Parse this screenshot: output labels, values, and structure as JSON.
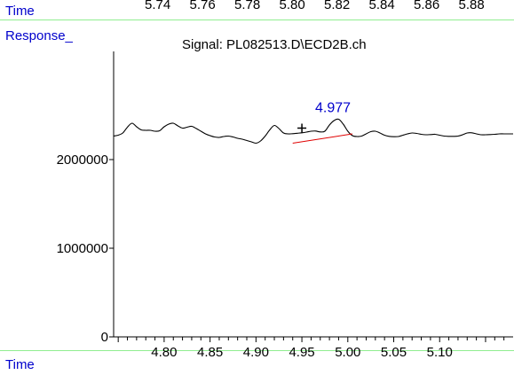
{
  "colors": {
    "label": "#0000cc",
    "rule": "#90ee90",
    "trace": "#000000",
    "baseline": "#e00000",
    "axis": "#000000"
  },
  "header": {
    "time_label": "Time",
    "top_ticks": [
      "5.74",
      "5.76",
      "5.78",
      "5.80",
      "5.82",
      "5.84",
      "5.86",
      "5.88"
    ],
    "response_label": "Response_"
  },
  "chart_data": {
    "type": "line",
    "title": "Signal: PL082513.D\\ECD2B.ch",
    "xlabel": "Time",
    "ylabel": "Response_",
    "xlim": [
      4.745,
      5.18
    ],
    "ylim": [
      0,
      2500000
    ],
    "x_ticks": [
      "4.80",
      "4.85",
      "4.90",
      "4.95",
      "5.00",
      "5.05",
      "5.10"
    ],
    "x_tick_values": [
      4.8,
      4.85,
      4.9,
      4.95,
      5.0,
      5.05,
      5.1
    ],
    "y_ticks": [
      "2000000",
      "1000000",
      "0"
    ],
    "y_tick_values": [
      2000000,
      1000000,
      0
    ],
    "peak": {
      "label": "4.977",
      "x": 4.977,
      "y": 2395000
    },
    "baseline_segment": {
      "x": [
        4.94,
        5.005
      ],
      "y": [
        2185000,
        2290000
      ]
    },
    "series": [
      {
        "x": [
          4.745,
          4.75,
          4.755,
          4.76,
          4.765,
          4.77,
          4.775,
          4.78,
          4.785,
          4.79,
          4.795,
          4.8,
          4.805,
          4.81,
          4.815,
          4.82,
          4.825,
          4.83,
          4.835,
          4.84,
          4.845,
          4.85,
          4.855,
          4.86,
          4.865,
          4.87,
          4.875,
          4.88,
          4.885,
          4.89,
          4.895,
          4.9,
          4.905,
          4.91,
          4.915,
          4.92,
          4.925,
          4.93,
          4.935,
          4.94,
          4.945,
          4.95,
          4.955,
          4.96,
          4.965,
          4.97,
          4.975,
          4.98,
          4.985,
          4.99,
          4.995,
          5.0,
          5.005,
          5.01,
          5.015,
          5.02,
          5.025,
          5.03,
          5.035,
          5.04,
          5.045,
          5.05,
          5.055,
          5.06,
          5.065,
          5.07,
          5.075,
          5.08,
          5.085,
          5.09,
          5.095,
          5.1,
          5.105,
          5.11,
          5.115,
          5.12,
          5.125,
          5.13,
          5.135,
          5.14,
          5.145,
          5.15,
          5.155,
          5.16,
          5.165,
          5.17,
          5.175,
          5.18
        ],
        "y": [
          2265000,
          2275000,
          2300000,
          2365000,
          2410000,
          2370000,
          2335000,
          2330000,
          2330000,
          2320000,
          2325000,
          2370000,
          2400000,
          2410000,
          2380000,
          2355000,
          2365000,
          2375000,
          2350000,
          2320000,
          2290000,
          2270000,
          2255000,
          2250000,
          2260000,
          2265000,
          2255000,
          2240000,
          2230000,
          2215000,
          2200000,
          2185000,
          2210000,
          2265000,
          2335000,
          2385000,
          2350000,
          2300000,
          2290000,
          2292000,
          2297000,
          2302000,
          2310000,
          2320000,
          2322000,
          2312000,
          2320000,
          2390000,
          2440000,
          2455000,
          2400000,
          2320000,
          2270000,
          2260000,
          2265000,
          2290000,
          2315000,
          2320000,
          2300000,
          2275000,
          2262000,
          2258000,
          2260000,
          2275000,
          2290000,
          2300000,
          2295000,
          2285000,
          2280000,
          2282000,
          2285000,
          2275000,
          2265000,
          2262000,
          2262000,
          2265000,
          2280000,
          2300000,
          2302000,
          2290000,
          2280000,
          2280000,
          2282000,
          2285000,
          2290000,
          2290000,
          2290000,
          2290000
        ]
      }
    ]
  }
}
